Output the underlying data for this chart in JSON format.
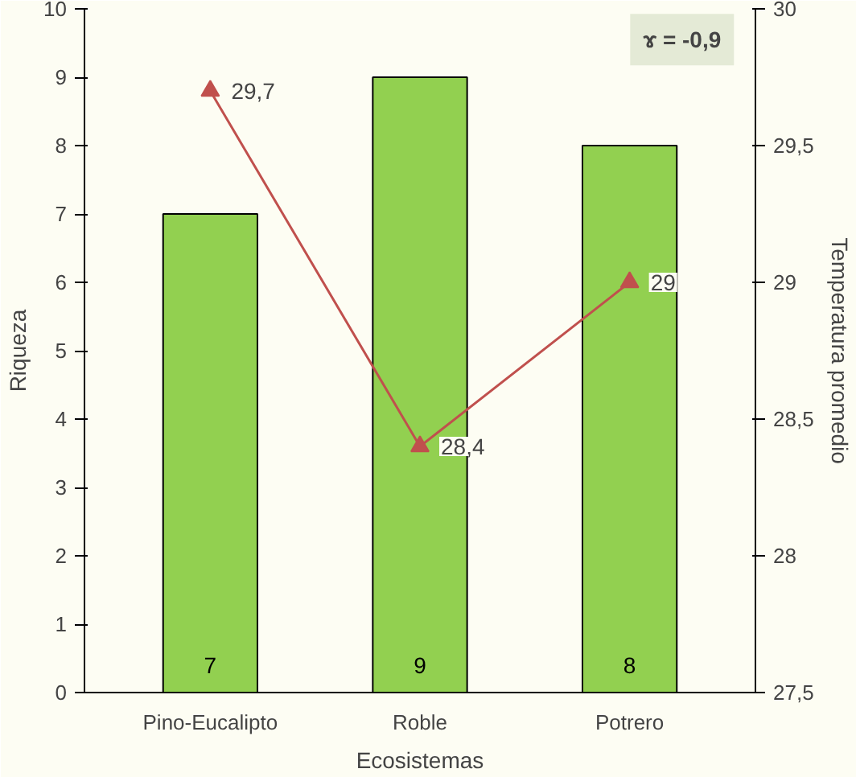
{
  "chart_data": {
    "type": "bar",
    "xlabel": "Ecosistemas",
    "ylabel": "Riqueza",
    "y2label": "Temperatura promedio",
    "categories": [
      "Pino-Eucalipto",
      "Roble",
      "Potrero"
    ],
    "series": [
      {
        "color": "#92d050",
        "values": [
          7,
          9,
          8
        ],
        "value_labels": [
          "7",
          "9",
          "8"
        ]
      },
      {
        "type": "line",
        "axis": "y2",
        "color": "#c0504d",
        "marker": "triangle",
        "values": [
          29.7,
          28.4,
          29
        ],
        "value_labels": [
          "29,7",
          "28,4",
          "29"
        ]
      }
    ],
    "ylim": [
      0,
      10
    ],
    "yticks": [
      0,
      1,
      2,
      3,
      4,
      5,
      6,
      7,
      8,
      9,
      10
    ],
    "y2lim": [
      27.5,
      30
    ],
    "y2ticks": [
      {
        "value": 27.5,
        "label": "27,5"
      },
      28,
      {
        "value": 28.5,
        "label": "28,5"
      },
      29,
      {
        "value": 29.5,
        "label": "29,5"
      },
      30
    ],
    "annotations": [
      "ɤ = -0,9"
    ],
    "grid": false
  }
}
